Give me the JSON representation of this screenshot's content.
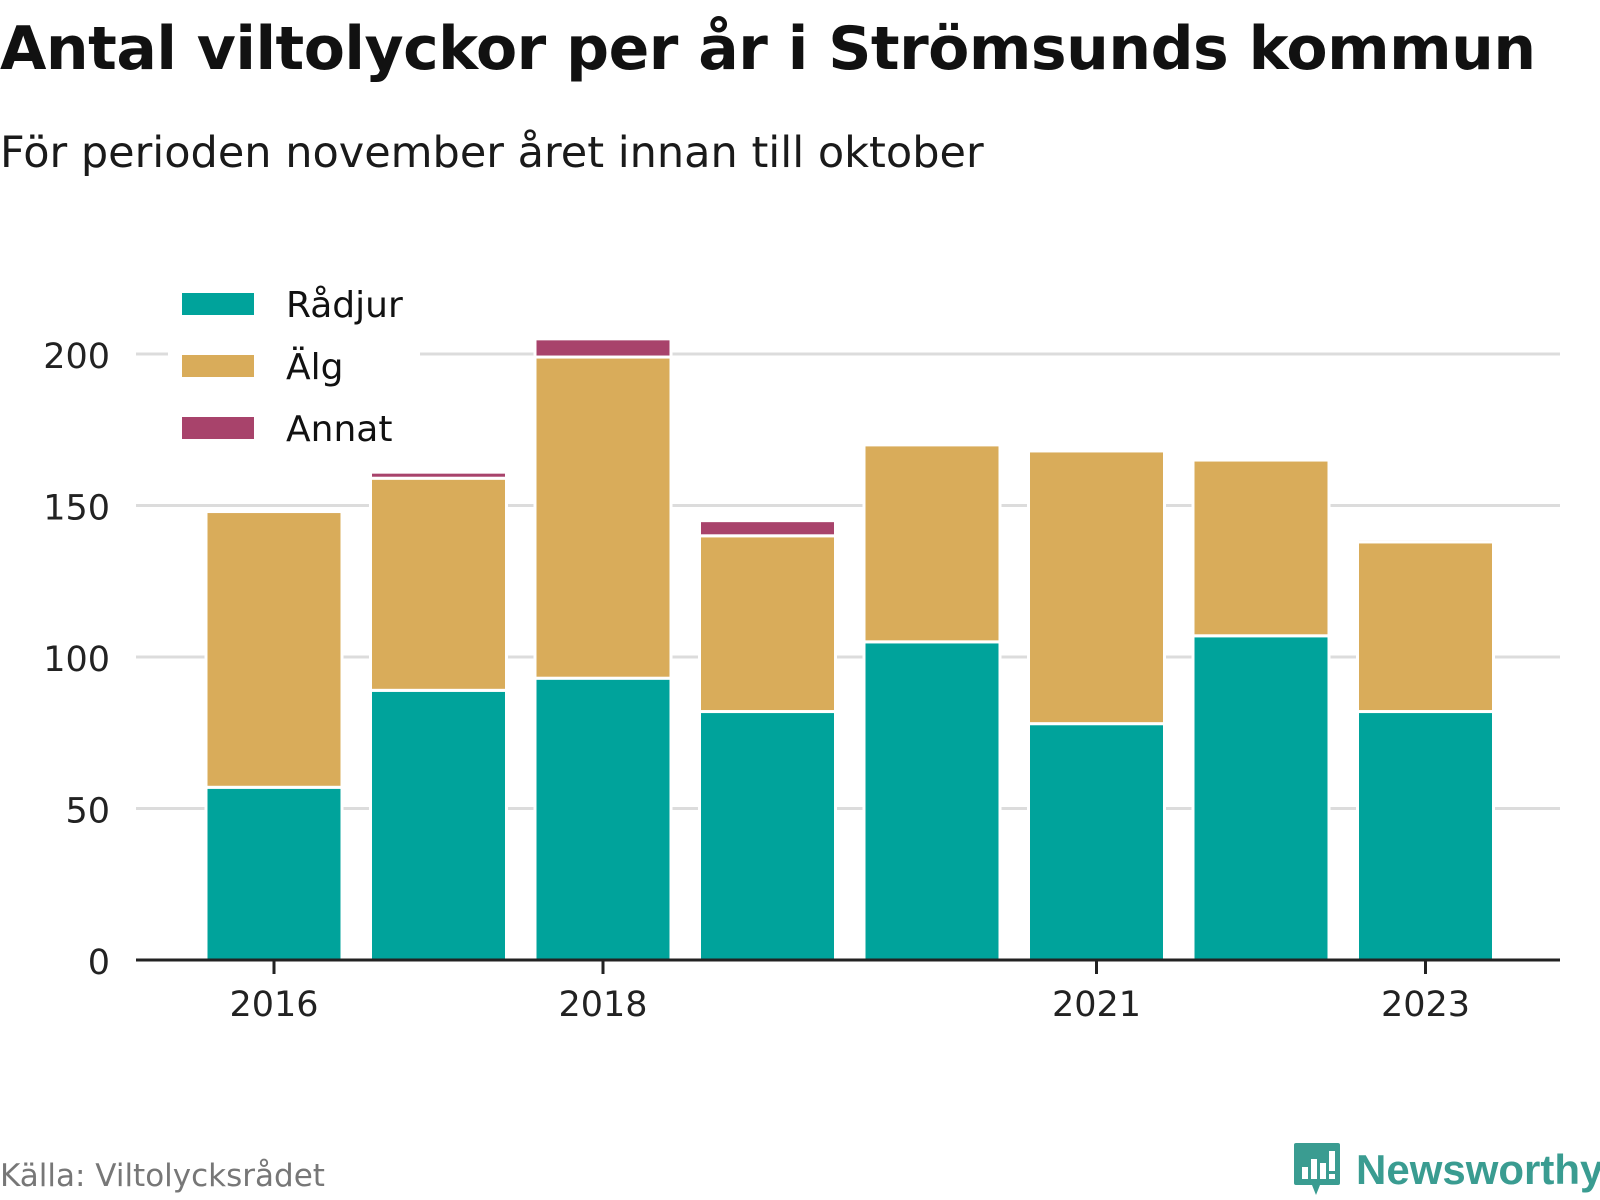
{
  "title": "Antal viltolyckor per år i Strömsunds kommun",
  "subtitle": "För perioden november året innan till oktober",
  "source": "Källa: Viltolycksrådet",
  "brand": {
    "name": "Newsworthy",
    "logo_icon": "newsworthy-bar-chart-bubble-icon",
    "color": "#3a9c91"
  },
  "chart_data": {
    "type": "bar",
    "stacked": true,
    "categories": [
      "2016",
      "2017",
      "2018",
      "2019",
      "2020",
      "2021",
      "2022",
      "2023"
    ],
    "x_tick_labels": [
      "2016",
      "2018",
      "2021",
      "2023"
    ],
    "series": [
      {
        "name": "Rådjur",
        "color": "#00a39b",
        "values": [
          57,
          89,
          93,
          82,
          105,
          78,
          107,
          82
        ]
      },
      {
        "name": "Älg",
        "color": "#d9ac5a",
        "values": [
          91,
          70,
          106,
          58,
          65,
          90,
          58,
          56
        ]
      },
      {
        "name": "Annat",
        "color": "#a8436b",
        "values": [
          0,
          2,
          6,
          5,
          0,
          0,
          0,
          1
        ]
      }
    ],
    "ylim": [
      0,
      210
    ],
    "y_ticks": [
      0,
      50,
      100,
      150,
      200
    ],
    "grid": true,
    "legend_position": "top-left",
    "xlabel": "",
    "ylabel": ""
  }
}
